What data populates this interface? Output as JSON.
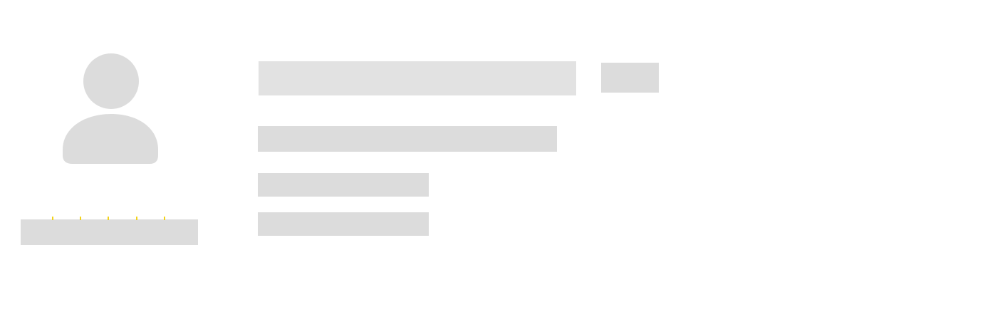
{
  "profile": {
    "avatar_icon": "user-placeholder-icon",
    "name": "",
    "badge": "",
    "subtitle": "",
    "detail_line_1": "",
    "detail_line_2": "",
    "rating": {
      "max_stars": 5,
      "star_color": "#f2d21b"
    }
  },
  "colors": {
    "skeleton": "#dcdcdc",
    "skeleton_title": "#e2e2e2",
    "background": "#ffffff"
  }
}
